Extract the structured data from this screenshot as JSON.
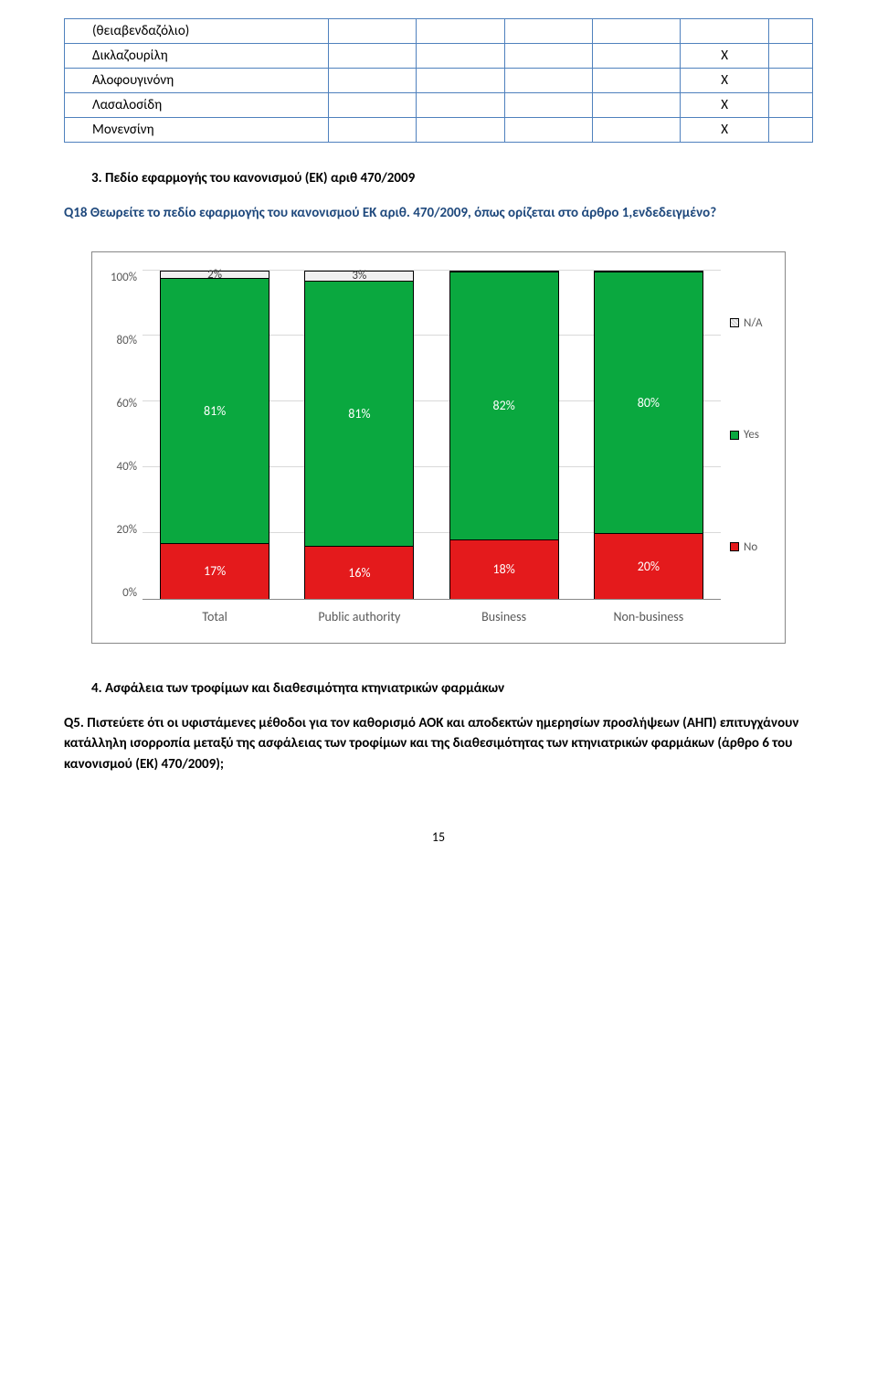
{
  "table": {
    "rows": [
      {
        "label": "(θειαβενδαζόλιο)",
        "marks": [
          "",
          "",
          "",
          "",
          "",
          ""
        ]
      },
      {
        "label": "Δικλαζουρίλη",
        "marks": [
          "",
          "",
          "",
          "",
          "X",
          ""
        ]
      },
      {
        "label": "Αλοφουγινόνη",
        "marks": [
          "",
          "",
          "",
          "",
          "X",
          ""
        ]
      },
      {
        "label": "Λασαλοσίδη",
        "marks": [
          "",
          "",
          "",
          "",
          "X",
          ""
        ]
      },
      {
        "label": "Μονενσίνη",
        "marks": [
          "",
          "",
          "",
          "",
          "X",
          ""
        ]
      }
    ]
  },
  "section3": {
    "heading": "3.          Πεδίο εφαρμογής του κανονισμού (ΕΚ) αριθ 470/2009",
    "question": "Q18 Θεωρείτε το πεδίο εφαρμογής του κανονισμού ΕΚ αριθ. 470/2009, όπως ορίζεται στο άρθρο 1,ενδεδειγμένο?"
  },
  "chart": {
    "y_ticks": [
      "100%",
      "80%",
      "60%",
      "40%",
      "20%",
      "0%"
    ],
    "categories": [
      "Total",
      "Public authority",
      "Business",
      "Non-business"
    ],
    "series": [
      {
        "key": "no",
        "label": "No",
        "color": "#e41a1c",
        "values": [
          17,
          16,
          18,
          20
        ]
      },
      {
        "key": "yes",
        "label": "Yes",
        "color": "#0aa83f",
        "values": [
          81,
          81,
          82,
          80
        ]
      },
      {
        "key": "na",
        "label": "N/A",
        "color": "#f0f0f0",
        "values": [
          2,
          3,
          0,
          0
        ]
      }
    ],
    "legend_order": [
      "na",
      "yes",
      "no"
    ],
    "bar_labels": {
      "no": [
        "17%",
        "16%",
        "18%",
        "20%"
      ],
      "yes": [
        "81%",
        "81%",
        "82%",
        "80%"
      ],
      "na": [
        "2%",
        "3%",
        "",
        ""
      ]
    }
  },
  "section4": {
    "heading": "4.          Ασφάλεια των τροφίμων και διαθεσιμότητα κτηνιατρικών φαρμάκων",
    "question": "Q5. Πιστεύετε ότι οι υφιστάμενες μέθοδοι για τον καθορισμό ΑΟΚ και αποδεκτών ημερησίων προσλήψεων (ΑΗΠ) επιτυγχάνουν κατάλληλη ισορροπία μεταξύ της ασφάλειας των τροφίμων και της διαθεσιμότητας των κτηνιατρικών φαρμάκων (άρθρο 6 του κανονισμού (ΕΚ) 470/2009);"
  },
  "page_number": "15"
}
